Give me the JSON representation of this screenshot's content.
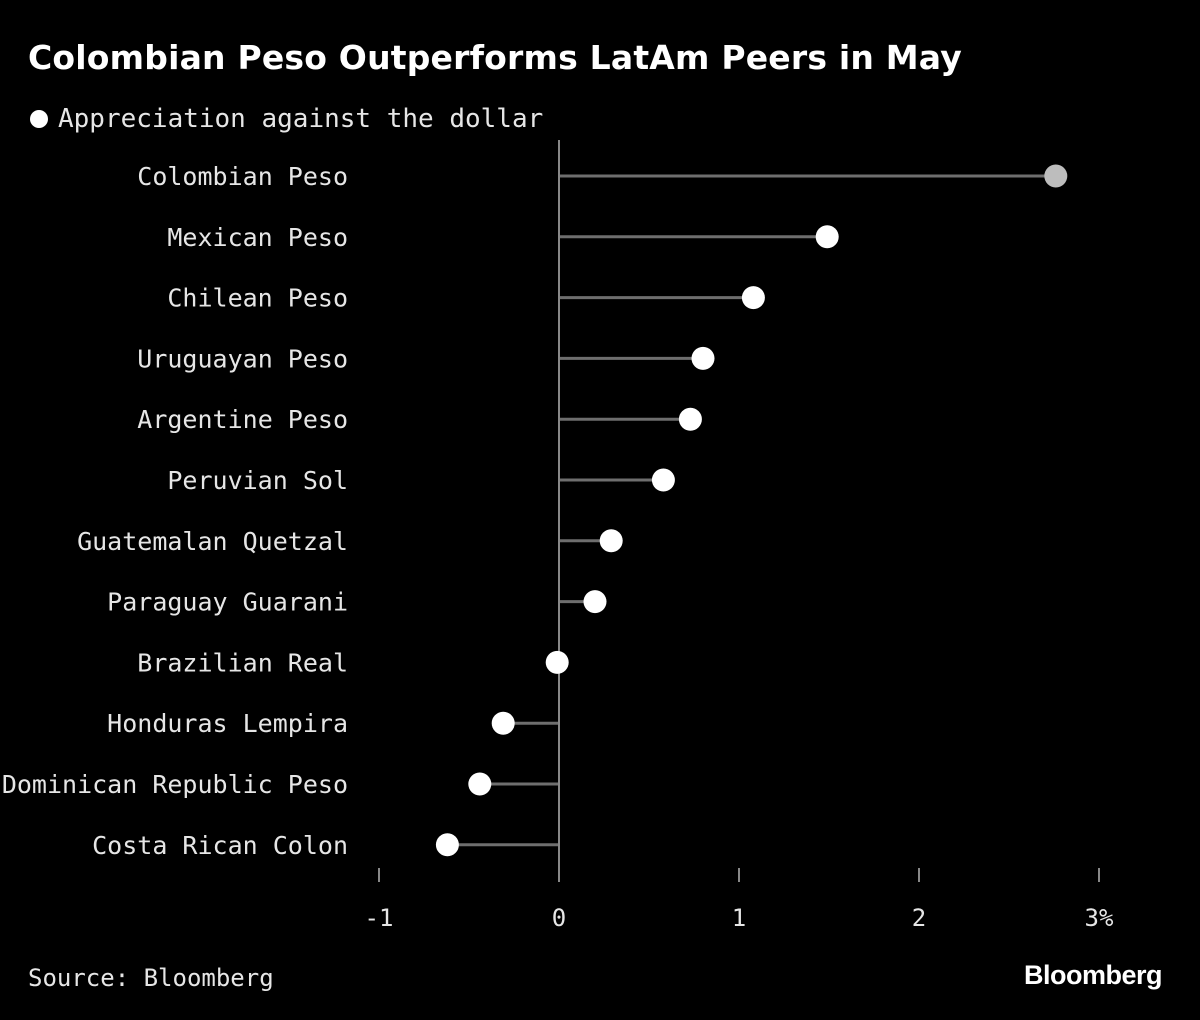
{
  "chart_data": {
    "type": "dot",
    "title": "Colombian Peso Outperforms LatAm Peers in May",
    "legend": "Appreciation against the dollar",
    "source": "Source: Bloomberg",
    "brand": "Bloomberg",
    "categories": [
      "Colombian Peso",
      "Mexican Peso",
      "Chilean Peso",
      "Uruguayan Peso",
      "Argentine Peso",
      "Peruvian Sol",
      "Guatemalan Quetzal",
      "Paraguay Guarani",
      "Brazilian Real",
      "Honduras Lempira",
      "Dominican Republic Peso",
      "Costa Rican Colon"
    ],
    "series": [
      {
        "name": "Appreciation against the dollar",
        "values": [
          2.76,
          1.49,
          1.08,
          0.8,
          0.73,
          0.58,
          0.29,
          0.2,
          -0.01,
          -0.31,
          -0.44,
          -0.62
        ]
      }
    ],
    "xlim": [
      -1,
      3
    ],
    "xticks": [
      -1,
      0,
      1,
      2,
      3
    ],
    "xtick_labels": [
      "-1",
      "0",
      "1",
      "2",
      "3%"
    ],
    "colors": {
      "background": "#000000",
      "dot": "#ffffff",
      "highlight_dot": "#bdbdbd",
      "stem": "#6e6e6e",
      "axis": "#888888",
      "text": "#e6e6e6"
    },
    "highlight_index": 0
  }
}
